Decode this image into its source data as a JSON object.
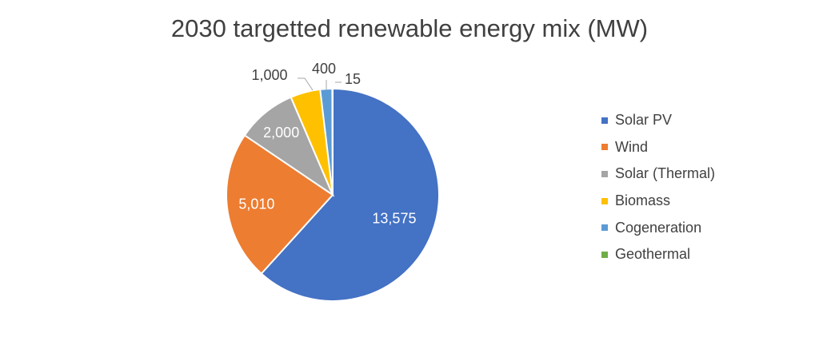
{
  "chart_data": {
    "type": "pie",
    "title": "2030 targetted renewable energy mix (MW)",
    "legend_position": "right",
    "series": [
      {
        "name": "Solar PV",
        "value": 13575,
        "label": "13,575",
        "color": "#4472C4"
      },
      {
        "name": "Wind",
        "value": 5010,
        "label": "5,010",
        "color": "#ED7D31"
      },
      {
        "name": "Solar (Thermal)",
        "value": 2000,
        "label": "2,000",
        "color": "#A5A5A5"
      },
      {
        "name": "Biomass",
        "value": 1000,
        "label": "1,000",
        "color": "#FFC000"
      },
      {
        "name": "Cogeneration",
        "value": 400,
        "label": "400",
        "color": "#5B9BD5"
      },
      {
        "name": "Geothermal",
        "value": 15,
        "label": "15",
        "color": "#70AD47"
      }
    ]
  }
}
